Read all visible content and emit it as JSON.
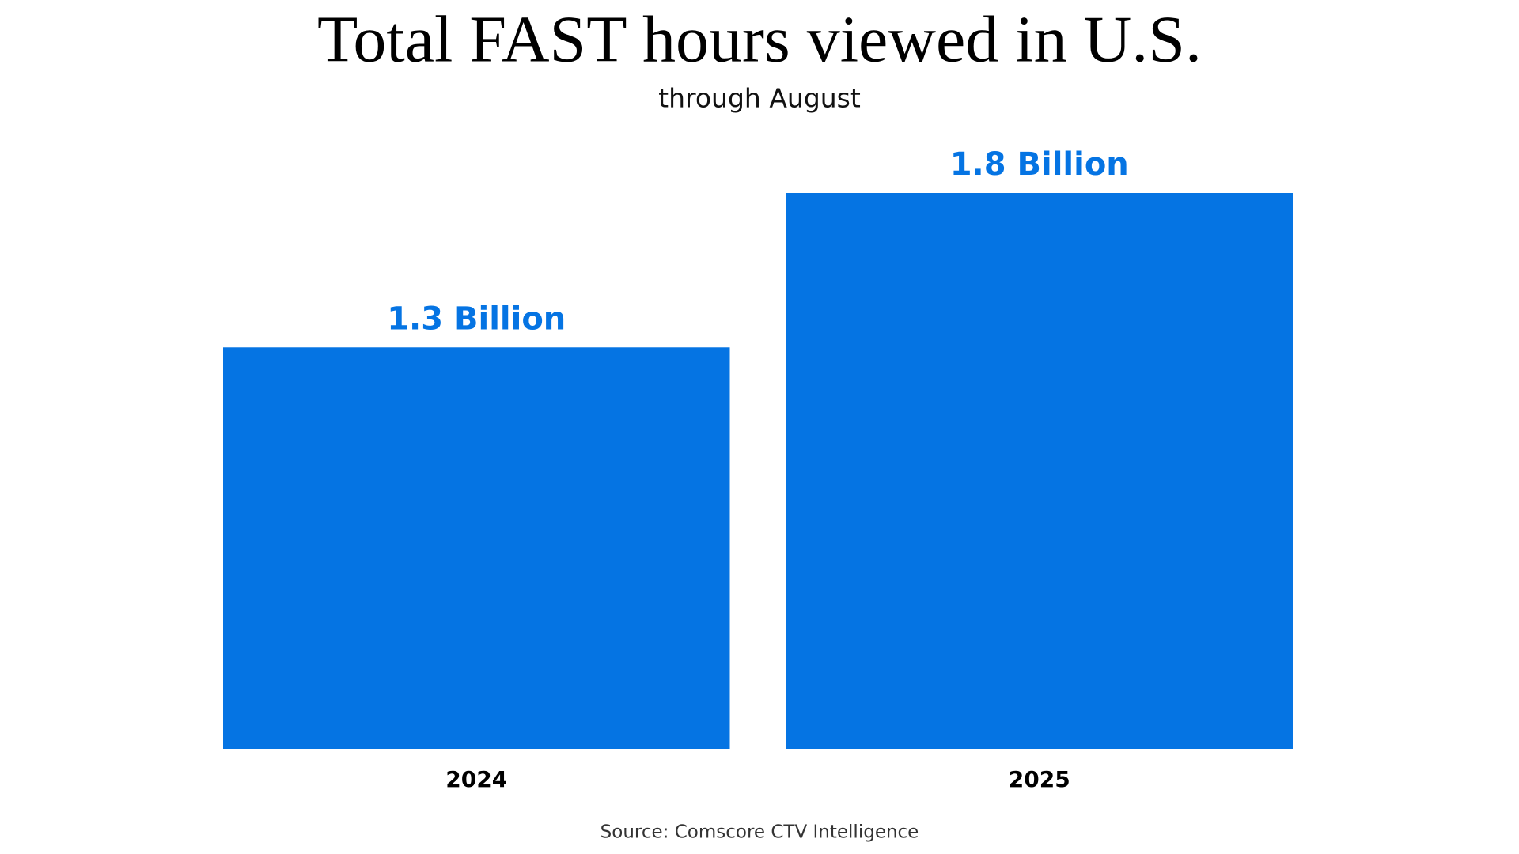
{
  "chart_data": {
    "type": "bar",
    "title": "Total FAST hours viewed in U.S.",
    "subtitle": "through August",
    "categories": [
      "2024",
      "2025"
    ],
    "values": [
      1.3,
      1.8
    ],
    "value_labels": [
      "1.3 Billion",
      "1.8 Billion"
    ],
    "color": "#0574e3",
    "source": "Source: Comscore CTV Intelligence"
  }
}
